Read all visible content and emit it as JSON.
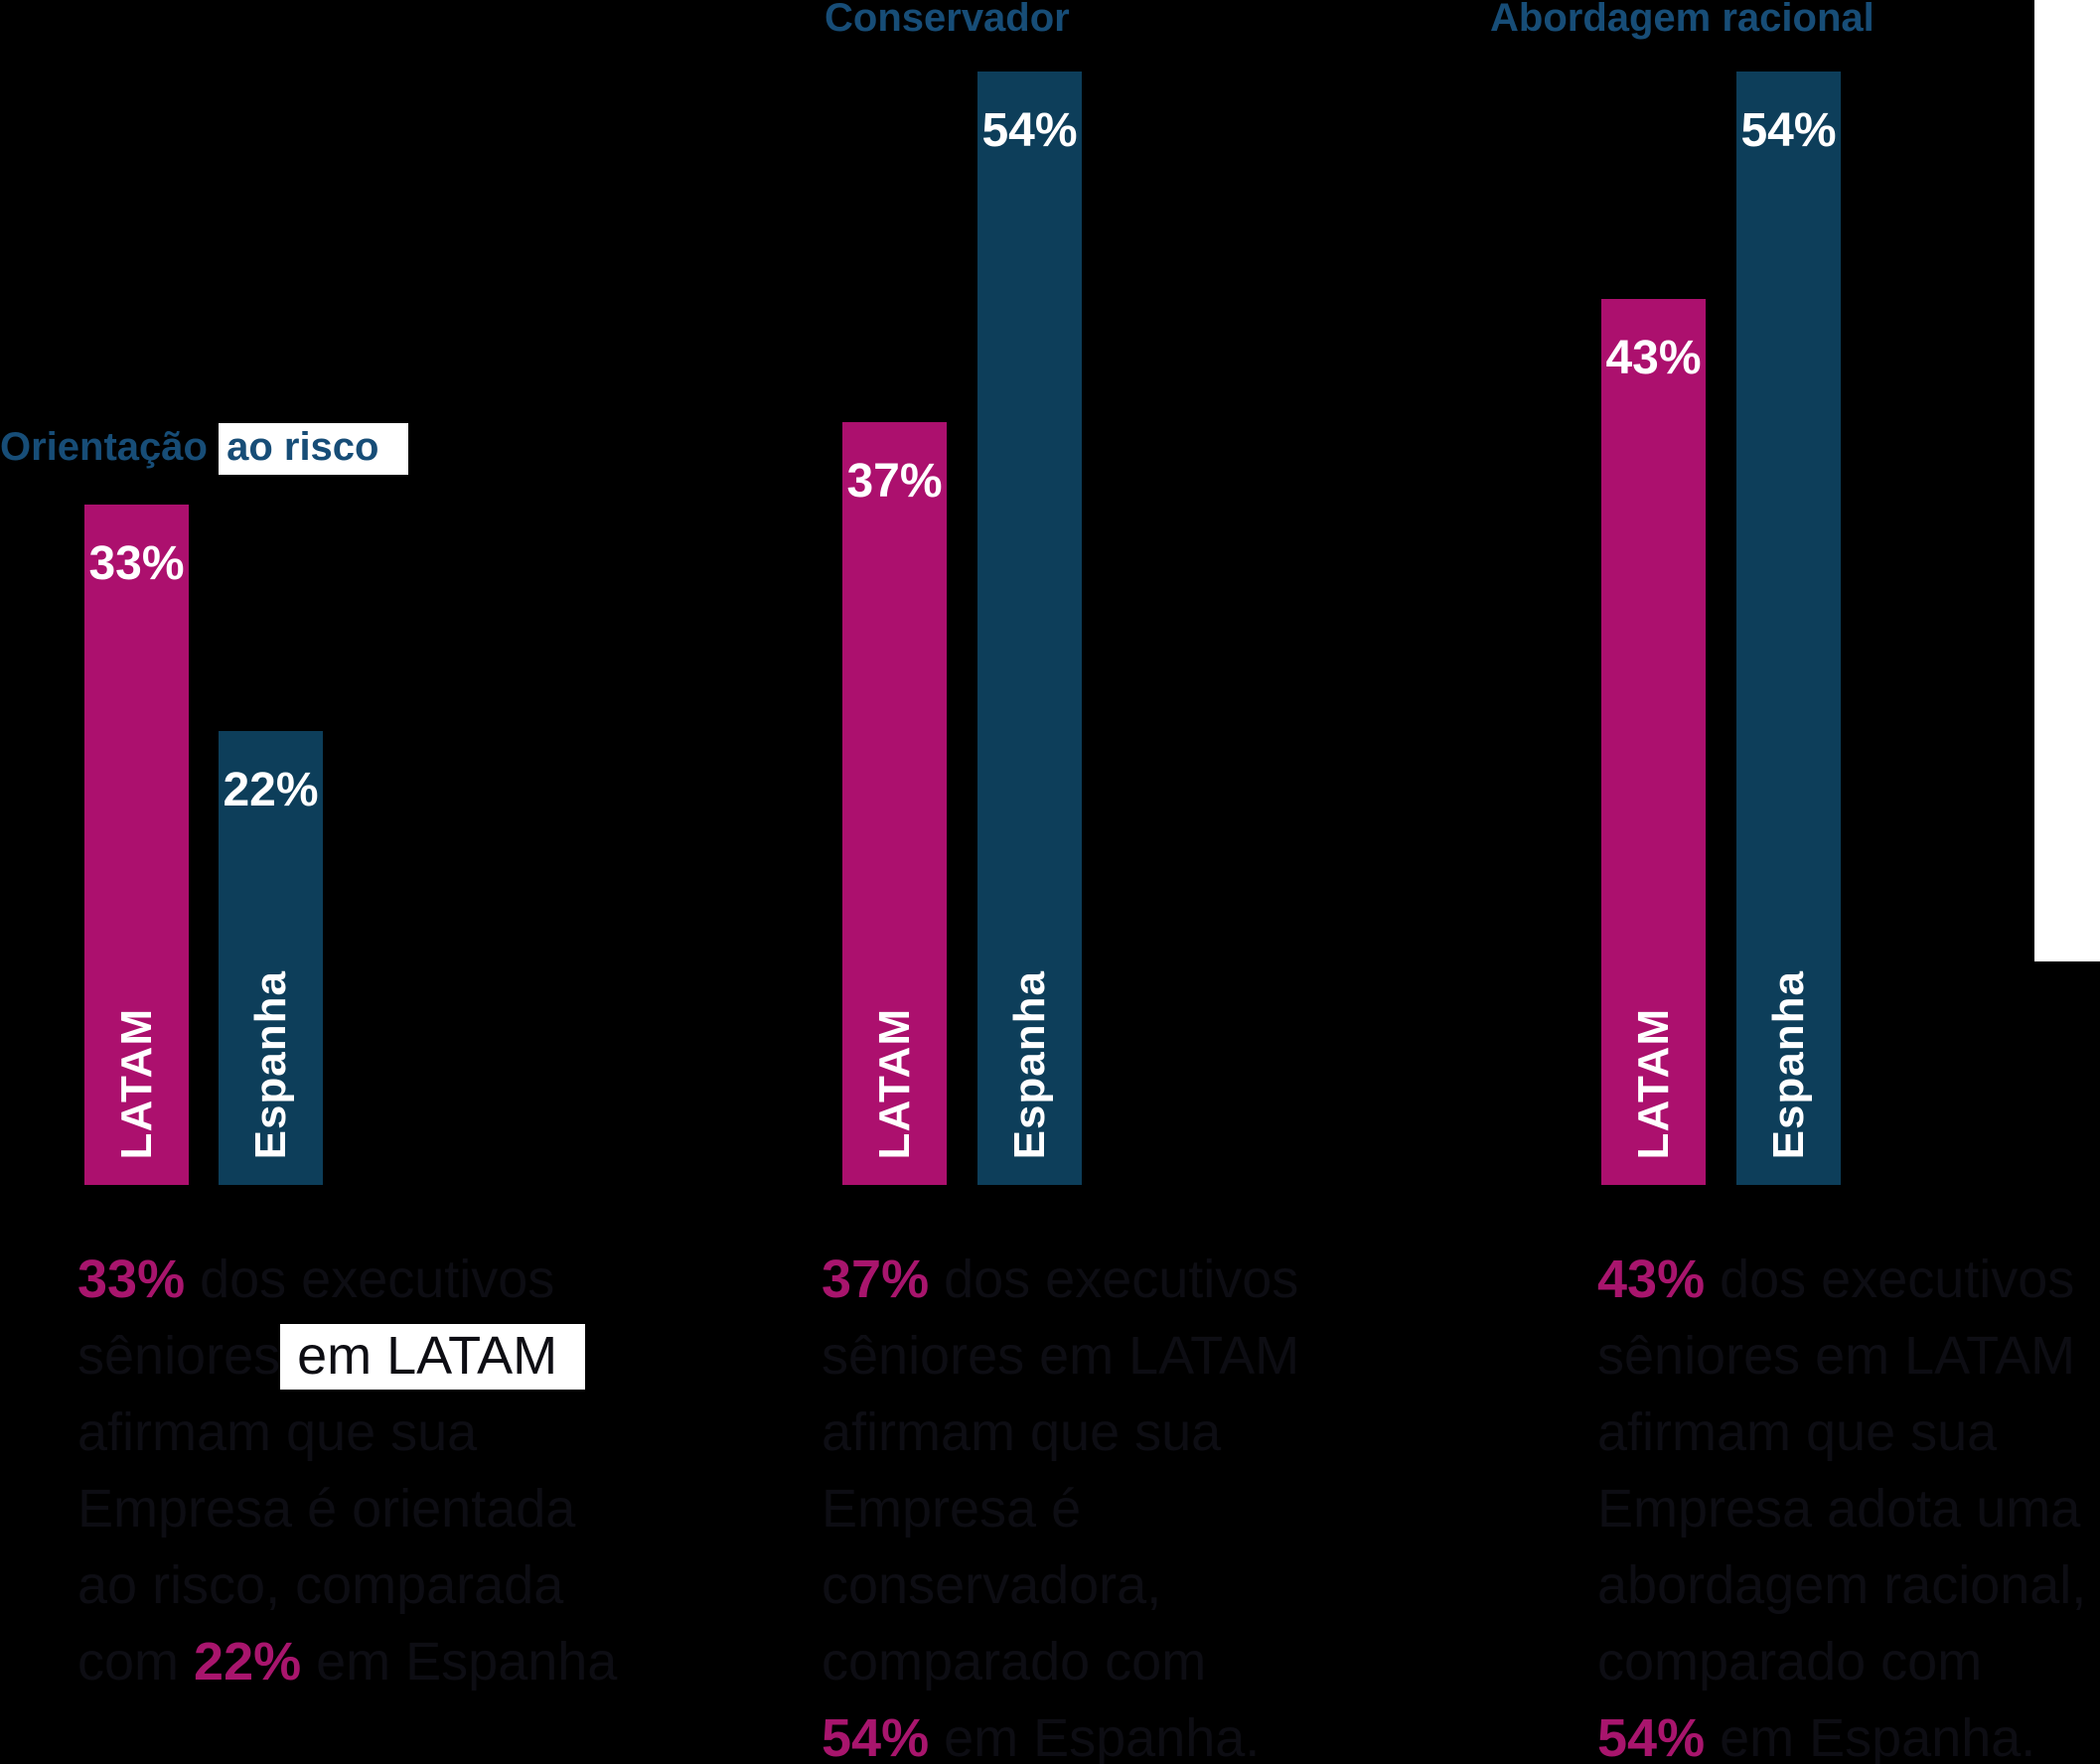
{
  "page": {
    "background": "#000000"
  },
  "colors": {
    "background": "#000000",
    "latam_bar": "#AC106E",
    "espanha_bar": "#0D3E5A",
    "title_text": "#174D77",
    "body_text": "#0D0D13",
    "bar_label_text": "#FFFFFF",
    "highlight_background": "#FFFFFF",
    "percent_accent": "#A8156D"
  },
  "decor": {
    "right_white_strip": true,
    "strip_color": "#FFFFFF"
  },
  "chart_data": {
    "type": "bar",
    "unit": "%",
    "ylim": [
      0,
      57.5
    ],
    "grid": false,
    "legend_position": "inside-bars",
    "series_names": [
      "LATAM",
      "Espanha"
    ],
    "groups": [
      {
        "title": [
          {
            "text": "Orientação ",
            "style": "normal"
          },
          {
            "text": "ao risco",
            "style": "highlight"
          }
        ],
        "title_plain": "Orientação ao risco",
        "bars": [
          {
            "series": "LATAM",
            "value": 33,
            "label": "33%"
          },
          {
            "series": "Espanha",
            "value": 22,
            "label": "22%"
          }
        ],
        "caption_plain": "33% dos executivos sêniores em LATAM afirmam que sua Empresa é orientada ao risco, comparada com 22% em Espanha",
        "caption_lines": [
          [
            {
              "text": "33%",
              "style": "pct"
            },
            {
              "text": " dos executivos",
              "style": "normal"
            }
          ],
          [
            {
              "text": "sêniores",
              "style": "normal"
            },
            {
              "text": " em LATAM",
              "style": "highlight"
            }
          ],
          [
            {
              "text": "afirmam que sua",
              "style": "normal"
            }
          ],
          [
            {
              "text": "Empresa é orientada",
              "style": "normal"
            }
          ],
          [
            {
              "text": "ao risco, comparada",
              "style": "normal"
            }
          ],
          [
            {
              "text": "com ",
              "style": "normal"
            },
            {
              "text": "22%",
              "style": "pct"
            },
            {
              "text": " em Espanha",
              "style": "normal"
            }
          ]
        ]
      },
      {
        "title": [
          {
            "text": "Conservador",
            "style": "normal"
          }
        ],
        "title_plain": "Conservador",
        "bars": [
          {
            "series": "LATAM",
            "value": 37,
            "label": "37%"
          },
          {
            "series": "Espanha",
            "value": 54,
            "label": "54%"
          }
        ],
        "caption_plain": "37% dos executivos sêniores em LATAM afirmam que sua Empresa é conservadora, comparado com 54% em Espanha.",
        "caption_lines": [
          [
            {
              "text": "37%",
              "style": "pct"
            },
            {
              "text": " dos executivos",
              "style": "normal"
            }
          ],
          [
            {
              "text": "sêniores em LATAM",
              "style": "normal"
            }
          ],
          [
            {
              "text": "afirmam que sua",
              "style": "normal"
            }
          ],
          [
            {
              "text": "Empresa é",
              "style": "normal"
            }
          ],
          [
            {
              "text": "conservadora,",
              "style": "normal"
            }
          ],
          [
            {
              "text": "comparado com",
              "style": "normal"
            }
          ],
          [
            {
              "text": "54%",
              "style": "pct"
            },
            {
              "text": " em Espanha.",
              "style": "normal"
            }
          ]
        ]
      },
      {
        "title": [
          {
            "text": "Abordagem racional",
            "style": "normal"
          }
        ],
        "title_plain": "Abordagem racional",
        "bars": [
          {
            "series": "LATAM",
            "value": 43,
            "label": "43%"
          },
          {
            "series": "Espanha",
            "value": 54,
            "label": "54%"
          }
        ],
        "caption_plain": "43% dos executivos sêniores em LATAM afirmam que sua Empresa adota uma abordagem racional, comparado com 54% em Espanha.",
        "caption_lines": [
          [
            {
              "text": "43%",
              "style": "pct"
            },
            {
              "text": " dos executivos",
              "style": "normal"
            }
          ],
          [
            {
              "text": "sêniores em LATAM",
              "style": "normal"
            }
          ],
          [
            {
              "text": "afirmam que sua",
              "style": "normal"
            }
          ],
          [
            {
              "text": "Empresa adota uma",
              "style": "normal"
            }
          ],
          [
            {
              "text": "abordagem racional,",
              "style": "normal"
            }
          ],
          [
            {
              "text": "comparado com",
              "style": "normal"
            }
          ],
          [
            {
              "text": "54%",
              "style": "pct"
            },
            {
              "text": " em Espanha.",
              "style": "normal"
            }
          ]
        ]
      }
    ]
  }
}
